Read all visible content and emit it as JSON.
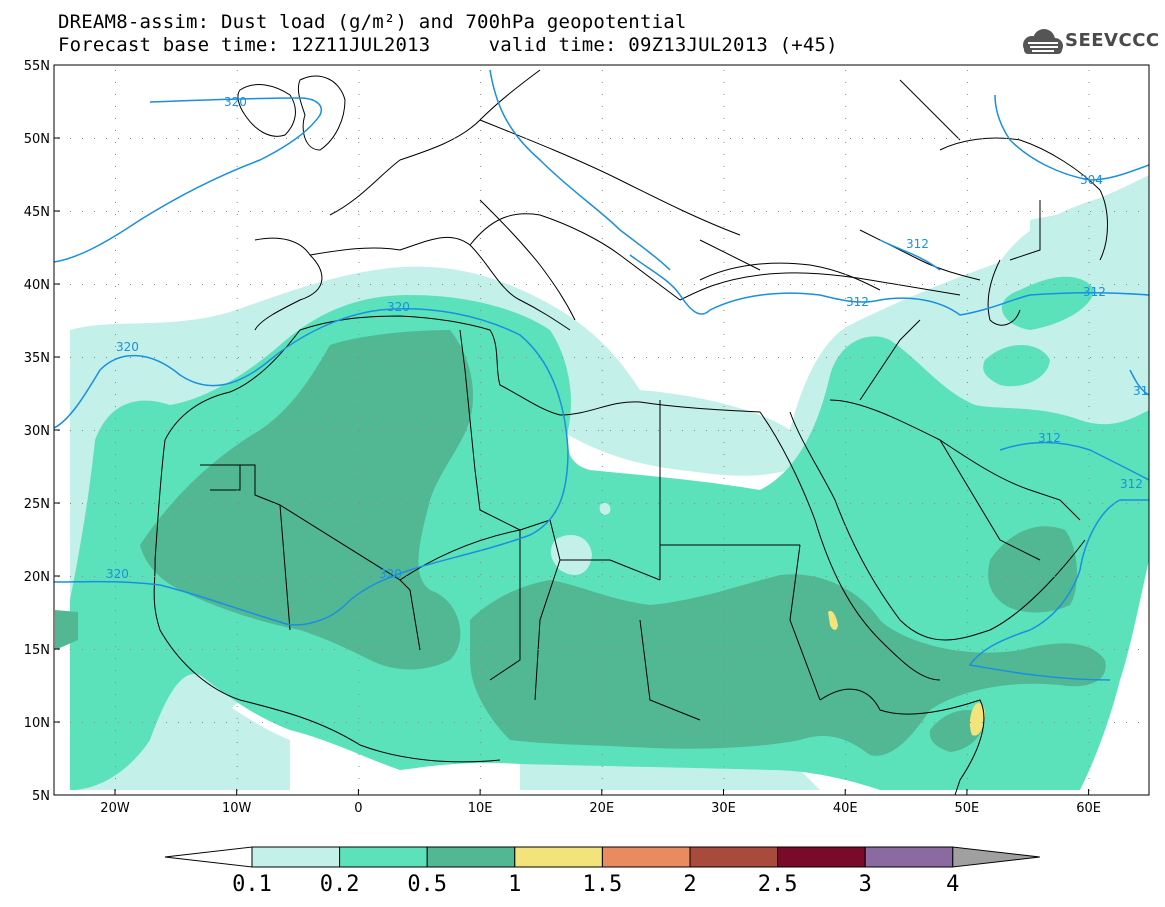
{
  "title": {
    "line1": "DREAM8-assim: Dust load (g/m²) and 700hPa geopotential",
    "line2": "Forecast base time: 12Z11JUL2013     valid time: 09Z13JUL2013 (+45)"
  },
  "logo": {
    "text": "SEEVCCC",
    "icon": "cloud-logo-icon"
  },
  "axes": {
    "lat_labels": [
      "55N",
      "50N",
      "45N",
      "40N",
      "35N",
      "30N",
      "25N",
      "20N",
      "15N",
      "10N",
      "5N"
    ],
    "lon_labels": [
      "20W",
      "10W",
      "0",
      "10E",
      "20E",
      "30E",
      "40E",
      "50E",
      "60E"
    ]
  },
  "contour_labels": [
    {
      "text": "320"
    },
    {
      "text": "320"
    },
    {
      "text": "320"
    },
    {
      "text": "320"
    },
    {
      "text": "320"
    },
    {
      "text": "312"
    },
    {
      "text": "312"
    },
    {
      "text": "312"
    },
    {
      "text": "312"
    },
    {
      "text": "312"
    },
    {
      "text": "304"
    },
    {
      "text": "31"
    }
  ],
  "colorbar": {
    "colors": [
      "#c4f0ea",
      "#5ce2bb",
      "#52b894",
      "#f2e37b",
      "#e98a5f",
      "#a84a3c",
      "#7a0a2a",
      "#8a6aa0"
    ],
    "under_color": "#ffffff",
    "over_color": "#a0a0a0",
    "labels": [
      "0.1",
      "0.2",
      "0.5",
      "1",
      "1.5",
      "2",
      "2.5",
      "3",
      "4"
    ]
  },
  "colors": {
    "contour": "#1a8fe0",
    "border": "#000000",
    "level1": "#c4f0ea",
    "level2": "#5ce2bb",
    "level3": "#52b894",
    "level4": "#f2e37b"
  }
}
